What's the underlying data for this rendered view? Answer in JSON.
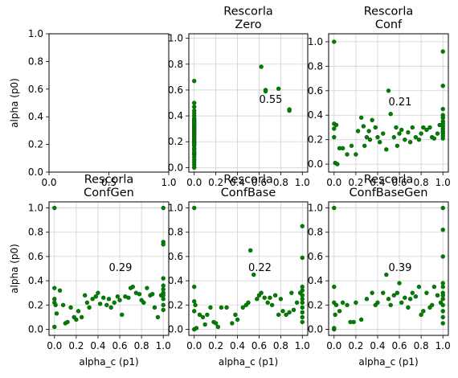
{
  "figure": {
    "background": "#ffffff",
    "point_color": "#008000",
    "point_edge": "#0b5d0b",
    "grid_color": "#d0d0d0"
  },
  "chart_data": [
    {
      "type": "empty",
      "title": [],
      "xlabel": "",
      "ylabel": "alpha (p0)",
      "xlim": [
        0,
        1
      ],
      "ylim": [
        0,
        1
      ],
      "xticks": [
        0.0,
        0.5,
        1.0
      ],
      "xticklabels": [
        "0.0",
        "0.5",
        "1.0"
      ],
      "yticks": [
        0.0,
        0.2,
        0.4,
        0.6,
        0.8,
        1.0
      ],
      "yticklabels": [
        "0.0",
        "0.2",
        "0.4",
        "0.6",
        "0.8",
        "1.0"
      ],
      "grid": false,
      "annotation": "",
      "x": [],
      "y": []
    },
    {
      "type": "scatter",
      "title": [
        "Rescorla",
        "Zero"
      ],
      "xlabel": "",
      "ylabel": "",
      "xlim": [
        -0.05,
        1.05
      ],
      "ylim": [
        -0.035,
        1.035
      ],
      "xticks": [
        0.0,
        0.2,
        0.4,
        0.6,
        0.8,
        1.0
      ],
      "xticklabels": [
        "0.0",
        "0.2",
        "0.4",
        "0.6",
        "0.8",
        "1.0"
      ],
      "yticks": [
        0.0,
        0.2,
        0.4,
        0.6,
        0.8,
        1.0
      ],
      "yticklabels": [
        "0.0",
        "0.2",
        "0.4",
        "0.6",
        "0.8",
        "1.0"
      ],
      "grid": true,
      "annotation": "0.55",
      "annotation_at": [
        0.6,
        0.5
      ],
      "x": [
        0.0,
        0.0,
        0.0,
        0.0,
        0.0,
        0.0,
        0.0,
        0.0,
        0.0,
        0.0,
        0.0,
        0.0,
        0.0,
        0.0,
        0.0,
        0.0,
        0.0,
        0.0,
        0.0,
        0.0,
        0.0,
        0.0,
        0.0,
        0.0,
        0.0,
        0.0,
        0.0,
        0.0,
        0.0,
        0.0,
        0.0,
        0.0,
        0.0,
        0.0,
        0.0,
        0.0,
        0.0,
        0.0,
        0.0,
        0.0,
        0.62,
        0.66,
        0.66,
        0.78,
        0.88,
        0.88
      ],
      "y": [
        0.0,
        0.02,
        0.04,
        0.06,
        0.08,
        0.1,
        0.11,
        0.12,
        0.14,
        0.15,
        0.17,
        0.18,
        0.19,
        0.2,
        0.21,
        0.22,
        0.23,
        0.24,
        0.25,
        0.26,
        0.27,
        0.28,
        0.29,
        0.3,
        0.31,
        0.32,
        0.33,
        0.34,
        0.35,
        0.36,
        0.37,
        0.38,
        0.4,
        0.42,
        0.44,
        0.47,
        0.5,
        0.67,
        0.18,
        0.35,
        0.78,
        0.6,
        0.59,
        0.61,
        0.45,
        0.44
      ]
    },
    {
      "type": "scatter",
      "title": [
        "Rescorla",
        "Conf"
      ],
      "xlabel": "",
      "ylabel": "",
      "xlim": [
        -0.05,
        1.05
      ],
      "ylim": [
        -0.065,
        1.065
      ],
      "xticks": [
        0.0,
        0.2,
        0.4,
        0.6,
        0.8,
        1.0
      ],
      "xticklabels": [
        "0.0",
        "0.2",
        "0.4",
        "0.6",
        "0.8",
        "1.0"
      ],
      "yticks": [
        0.0,
        0.2,
        0.4,
        0.6,
        0.8,
        1.0
      ],
      "yticklabels": [
        "0.0",
        "0.2",
        "0.4",
        "0.6",
        "0.8",
        "1.0"
      ],
      "grid": true,
      "annotation": "0.21",
      "annotation_at": [
        0.5,
        0.48
      ],
      "x": [
        0.0,
        0.0,
        0.0,
        0.0,
        0.01,
        0.02,
        0.03,
        0.05,
        0.08,
        0.12,
        0.16,
        0.2,
        0.22,
        0.25,
        0.27,
        0.28,
        0.3,
        0.32,
        0.33,
        0.35,
        0.38,
        0.4,
        0.42,
        0.45,
        0.48,
        0.5,
        0.52,
        0.55,
        0.57,
        0.58,
        0.6,
        0.62,
        0.65,
        0.68,
        0.7,
        0.72,
        0.75,
        0.78,
        0.8,
        0.82,
        0.85,
        0.88,
        0.9,
        0.92,
        0.95,
        0.97,
        1.0,
        1.0,
        1.0,
        1.0,
        1.0,
        1.0,
        1.0,
        1.0,
        1.0,
        1.0,
        1.0,
        1.0,
        1.0,
        1.0,
        1.0
      ],
      "y": [
        1.0,
        0.33,
        0.29,
        0.22,
        0.01,
        0.32,
        0.0,
        0.13,
        0.13,
        0.08,
        0.15,
        0.08,
        0.27,
        0.38,
        0.31,
        0.15,
        0.22,
        0.27,
        0.2,
        0.36,
        0.3,
        0.22,
        0.18,
        0.25,
        0.12,
        0.6,
        0.41,
        0.22,
        0.3,
        0.15,
        0.25,
        0.28,
        0.2,
        0.26,
        0.18,
        0.3,
        0.22,
        0.2,
        0.25,
        0.3,
        0.28,
        0.3,
        0.22,
        0.21,
        0.25,
        0.32,
        0.92,
        0.64,
        0.45,
        0.4,
        0.38,
        0.35,
        0.33,
        0.31,
        0.29,
        0.27,
        0.25,
        0.23,
        0.21,
        0.38,
        0.26
      ]
    },
    {
      "type": "scatter",
      "title": [
        "Rescorla",
        "ConfGen"
      ],
      "xlabel": "alpha_c (p1)",
      "ylabel": "alpha (p0)",
      "xlim": [
        -0.05,
        1.05
      ],
      "ylim": [
        -0.05,
        1.05
      ],
      "xticks": [
        0.0,
        0.2,
        0.4,
        0.6,
        0.8,
        1.0
      ],
      "xticklabels": [
        "0.0",
        "0.2",
        "0.4",
        "0.6",
        "0.8",
        "1.0"
      ],
      "yticks": [
        0.0,
        0.2,
        0.4,
        0.6,
        0.8,
        1.0
      ],
      "yticklabels": [
        "0.0",
        "0.2",
        "0.4",
        "0.6",
        "0.8",
        "1.0"
      ],
      "grid": true,
      "annotation": "0.29",
      "annotation_at": [
        0.5,
        0.48
      ],
      "x": [
        0.0,
        0.0,
        0.0,
        0.0,
        0.0,
        0.01,
        0.02,
        0.05,
        0.08,
        0.1,
        0.12,
        0.15,
        0.18,
        0.2,
        0.22,
        0.25,
        0.28,
        0.3,
        0.32,
        0.35,
        0.38,
        0.4,
        0.42,
        0.45,
        0.48,
        0.5,
        0.52,
        0.55,
        0.58,
        0.6,
        0.62,
        0.65,
        0.68,
        0.7,
        0.72,
        0.75,
        0.78,
        0.8,
        0.82,
        0.85,
        0.88,
        0.9,
        0.92,
        0.95,
        0.98,
        1.0,
        1.0,
        1.0,
        1.0,
        1.0,
        1.0,
        1.0,
        1.0,
        1.0,
        1.0,
        1.0
      ],
      "y": [
        1.0,
        0.34,
        0.25,
        0.22,
        0.02,
        0.2,
        0.13,
        0.32,
        0.2,
        0.05,
        0.06,
        0.18,
        0.1,
        0.08,
        0.15,
        0.1,
        0.28,
        0.22,
        0.18,
        0.25,
        0.27,
        0.3,
        0.21,
        0.26,
        0.2,
        0.25,
        0.18,
        0.22,
        0.27,
        0.24,
        0.12,
        0.27,
        0.26,
        0.34,
        0.35,
        0.3,
        0.29,
        0.24,
        0.22,
        0.34,
        0.28,
        0.29,
        0.18,
        0.1,
        0.28,
        1.0,
        0.72,
        0.7,
        0.42,
        0.36,
        0.33,
        0.3,
        0.28,
        0.25,
        0.2,
        0.16
      ]
    },
    {
      "type": "scatter",
      "title": [
        "Rescorla",
        "ConfBase"
      ],
      "xlabel": "alpha_c (p1)",
      "ylabel": "",
      "xlim": [
        -0.05,
        1.05
      ],
      "ylim": [
        -0.05,
        1.05
      ],
      "xticks": [
        0.0,
        0.2,
        0.4,
        0.6,
        0.8,
        1.0
      ],
      "xticklabels": [
        "0.0",
        "0.2",
        "0.4",
        "0.6",
        "0.8",
        "1.0"
      ],
      "yticks": [
        0.0,
        0.2,
        0.4,
        0.6,
        0.8,
        1.0
      ],
      "yticklabels": [
        "0.0",
        "0.2",
        "0.4",
        "0.6",
        "0.8",
        "1.0"
      ],
      "grid": true,
      "annotation": "0.22",
      "annotation_at": [
        0.5,
        0.48
      ],
      "x": [
        0.0,
        0.0,
        0.0,
        0.0,
        0.0,
        0.01,
        0.02,
        0.05,
        0.08,
        0.1,
        0.12,
        0.15,
        0.18,
        0.2,
        0.22,
        0.25,
        0.3,
        0.35,
        0.38,
        0.4,
        0.45,
        0.48,
        0.5,
        0.52,
        0.55,
        0.58,
        0.6,
        0.62,
        0.65,
        0.68,
        0.7,
        0.72,
        0.75,
        0.78,
        0.8,
        0.82,
        0.85,
        0.88,
        0.9,
        0.92,
        0.95,
        0.98,
        1.0,
        1.0,
        1.0,
        1.0,
        1.0,
        1.0,
        1.0,
        1.0,
        1.0,
        1.0,
        1.0,
        1.0
      ],
      "y": [
        1.0,
        0.35,
        0.23,
        0.15,
        0.0,
        0.2,
        0.01,
        0.12,
        0.1,
        0.04,
        0.12,
        0.18,
        0.06,
        0.05,
        0.02,
        0.18,
        0.18,
        0.05,
        0.12,
        0.08,
        0.18,
        0.2,
        0.22,
        0.65,
        0.45,
        0.25,
        0.28,
        0.3,
        0.26,
        0.22,
        0.26,
        0.2,
        0.28,
        0.12,
        0.25,
        0.15,
        0.12,
        0.14,
        0.3,
        0.16,
        0.22,
        0.3,
        0.85,
        0.59,
        0.35,
        0.32,
        0.28,
        0.25,
        0.22,
        0.18,
        0.14,
        0.1,
        0.06,
        0.22
      ]
    },
    {
      "type": "scatter",
      "title": [
        "Rescorla",
        "ConfBaseGen"
      ],
      "xlabel": "alpha_c (p1)",
      "ylabel": "",
      "xlim": [
        -0.05,
        1.05
      ],
      "ylim": [
        -0.05,
        1.05
      ],
      "xticks": [
        0.0,
        0.2,
        0.4,
        0.6,
        0.8,
        1.0
      ],
      "xticklabels": [
        "0.0",
        "0.2",
        "0.4",
        "0.6",
        "0.8",
        "1.0"
      ],
      "yticks": [
        0.0,
        0.2,
        0.4,
        0.6,
        0.8,
        1.0
      ],
      "yticklabels": [
        "0.0",
        "0.2",
        "0.4",
        "0.6",
        "0.8",
        "1.0"
      ],
      "grid": true,
      "annotation": "0.39",
      "annotation_at": [
        0.5,
        0.48
      ],
      "x": [
        0.0,
        0.0,
        0.0,
        0.0,
        0.0,
        0.01,
        0.02,
        0.05,
        0.08,
        0.12,
        0.15,
        0.18,
        0.2,
        0.25,
        0.3,
        0.35,
        0.38,
        0.4,
        0.45,
        0.48,
        0.5,
        0.52,
        0.55,
        0.58,
        0.6,
        0.62,
        0.65,
        0.68,
        0.7,
        0.72,
        0.75,
        0.78,
        0.8,
        0.82,
        0.85,
        0.88,
        0.9,
        0.92,
        0.95,
        0.98,
        1.0,
        1.0,
        1.0,
        1.0,
        1.0,
        1.0,
        1.0,
        1.0,
        1.0,
        1.0,
        1.0,
        1.0
      ],
      "y": [
        1.0,
        0.35,
        0.22,
        0.0,
        0.01,
        0.12,
        0.2,
        0.15,
        0.22,
        0.2,
        0.06,
        0.06,
        0.22,
        0.08,
        0.25,
        0.3,
        0.2,
        0.22,
        0.3,
        0.45,
        0.25,
        0.2,
        0.28,
        0.3,
        0.38,
        0.22,
        0.26,
        0.18,
        0.25,
        0.3,
        0.27,
        0.35,
        0.12,
        0.15,
        0.3,
        0.18,
        0.2,
        0.35,
        0.28,
        0.22,
        1.0,
        0.82,
        0.6,
        0.38,
        0.35,
        0.3,
        0.28,
        0.25,
        0.2,
        0.15,
        0.1,
        0.05
      ]
    }
  ]
}
